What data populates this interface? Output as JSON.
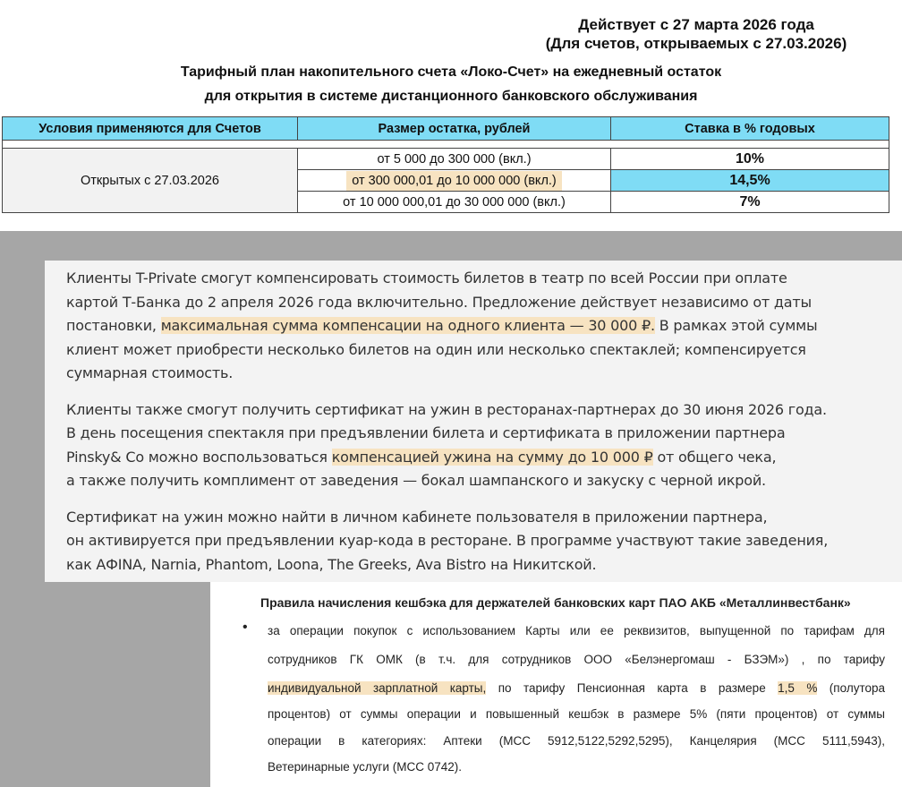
{
  "tariff": {
    "effective": "Действует с 27 марта 2026 года",
    "note": "(Для счетов, открываемых с 27.03.2026)",
    "title1": "Тарифный план накопительного счета «Локо-Счет» на ежедневный остаток",
    "title2": "для открытия в системе дистанционного банковского обслуживания",
    "headers": [
      "Условия применяются для Счетов",
      "Размер остатка, рублей",
      "Ставка в % годовых"
    ],
    "condition": "Открытых с 27.03.2026",
    "rows": [
      {
        "range": "от 5 000 до 300 000 (вкл.)",
        "rate": "10%"
      },
      {
        "range": "от 300 000,01 до 10 000 000 (вкл.)",
        "rate": "14,5%"
      },
      {
        "range": "от 10 000 000,01 до 30 000 000 (вкл.)",
        "rate": "7%"
      }
    ],
    "highlight_color": "#7fdcf5"
  },
  "promo": {
    "paragraphs": [
      [
        [
          {
            "t": "Клиенты T-Private смогут компенсировать стоимость билетов в театр по всей России при оплате"
          }
        ],
        [
          {
            "t": "картой Т-Банка до 2 апреля 2026 года включительно. Предложение действует независимо от даты"
          }
        ],
        [
          {
            "t": "постановки, "
          },
          {
            "t": "максимальная сумма компенсации на одного клиента — 30 000 ₽.",
            "hl": true
          },
          {
            "t": " В рамках этой суммы"
          }
        ],
        [
          {
            "t": "клиент может приобрести несколько билетов на один или несколько спектаклей; компенсируется"
          }
        ],
        [
          {
            "t": "суммарная стоимость."
          }
        ]
      ],
      [
        [
          {
            "t": "Клиенты также смогут получить сертификат на ужин в ресторанах-партнерах до 30 июня 2026 года."
          }
        ],
        [
          {
            "t": "В день посещения спектакля при предъявлении билета и сертификата в приложении партнера"
          }
        ],
        [
          {
            "t": "Pinsky& Co можно воспользоваться "
          },
          {
            "t": "компенсацией ужина на сумму до 10 000 ₽",
            "hl": true
          },
          {
            "t": " от общего чека,"
          }
        ],
        [
          {
            "t": "а также получить комплимент от заведения — бокал шампанского и закуску с черной икрой."
          }
        ]
      ],
      [
        [
          {
            "t": "Сертификат на ужин можно найти в личном кабинете пользователя в приложении партнера,"
          }
        ],
        [
          {
            "t": "он активируется при предъявлении куар-кода в ресторане. В программе участвуют такие заведения,"
          }
        ],
        [
          {
            "t": "как АФINA, Narnia, Phantom, Loona, The Greeks, Ava Bistro на Никитской."
          }
        ]
      ]
    ],
    "highlight_color": "#f7e3c1"
  },
  "cashback": {
    "title": "Правила начисления кешбэка для держателей банковских карт ПАО АКБ «Металлинвестбанк»",
    "bullet": "•",
    "lines": [
      [
        {
          "t": "за операции покупок с использованием Карты или ее реквизитов, выпущенной по тарифам для"
        }
      ],
      [
        {
          "t": "сотрудников ГК ОМК (в т.ч. для сотрудников ООО «Белэнергомаш - БЗЭМ») , по тарифу"
        }
      ],
      [
        {
          "t": "индивидуальной зарплатной карты,",
          "hl": true
        },
        {
          "t": " по тарифу Пенсионная карта  в размере "
        },
        {
          "t": "1,5 %",
          "hl": true
        },
        {
          "t": " (полутора"
        }
      ],
      [
        {
          "t": "процентов) от суммы операции и повышенный кешбэк в размере 5% (пяти процентов) от суммы"
        }
      ],
      [
        {
          "t": "операции в категориях: Аптеки (МСС 5912,5122,5292,5295), Канцелярия (МСС 5111,5943),"
        }
      ],
      [
        {
          "t": "Ветеринарные услуги (МСС 0742)."
        }
      ]
    ]
  }
}
